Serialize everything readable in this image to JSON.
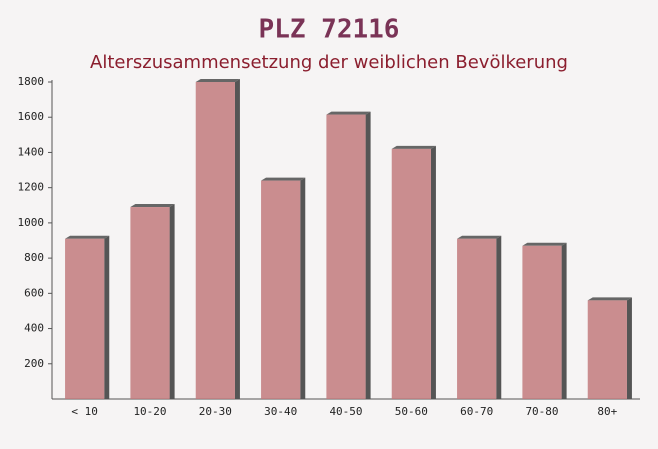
{
  "chart_data": {
    "type": "bar",
    "title": "PLZ 72116",
    "subtitle": "Alterszusammensetzung der weiblichen Bevölkerung",
    "categories": [
      "< 10",
      "10-20",
      "20-30",
      "30-40",
      "40-50",
      "50-60",
      "60-70",
      "70-80",
      "80+"
    ],
    "values": [
      910,
      1090,
      1800,
      1240,
      1615,
      1420,
      910,
      870,
      560
    ],
    "color": "#c27a7c",
    "ylim": [
      0,
      1800
    ],
    "yticks": [
      200,
      400,
      600,
      800,
      1000,
      1200,
      1400,
      1600,
      1800
    ]
  }
}
